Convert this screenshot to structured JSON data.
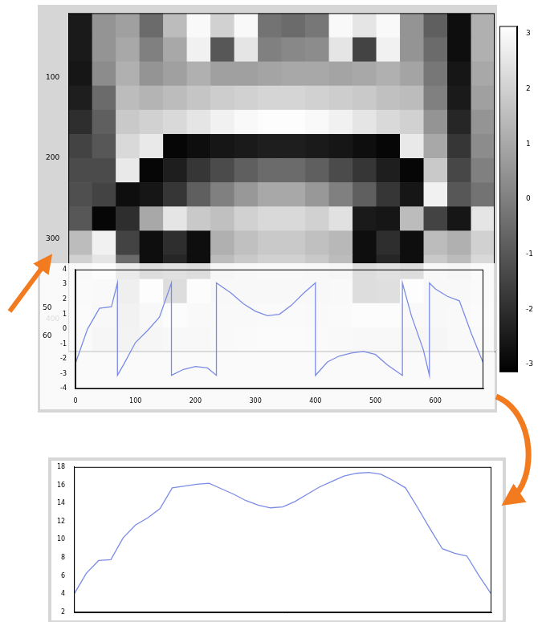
{
  "chart_data": [
    {
      "type": "heatmap",
      "xlim": [
        0,
        540
      ],
      "ylim": [
        20,
        440
      ],
      "yticks": [
        100,
        200,
        300,
        400
      ],
      "tick_labels": "y",
      "x_edges": [
        0,
        30,
        60,
        90,
        120,
        150,
        180,
        210,
        240,
        270,
        300,
        330,
        360,
        390,
        420,
        450,
        480,
        510,
        540
      ],
      "y_edges": [
        20,
        50,
        80,
        110,
        140,
        170,
        200,
        230,
        260,
        290,
        320,
        350,
        380,
        410,
        440
      ],
      "cells": [
        [
          -2.5,
          0.5,
          0.8,
          -0.5,
          1.5,
          3.0,
          2.0,
          3.0,
          -0.3,
          -0.5,
          -0.2,
          3.0,
          2.5,
          3.0,
          0.5,
          -0.8,
          -2.8,
          1.2
        ],
        [
          -2.5,
          0.5,
          1.0,
          0.0,
          1.0,
          2.8,
          -1.0,
          2.5,
          0.0,
          0.2,
          0.3,
          2.5,
          -1.5,
          2.8,
          0.5,
          -0.5,
          -2.8,
          1.2
        ],
        [
          -2.6,
          0.3,
          1.2,
          0.5,
          0.8,
          1.2,
          0.8,
          0.8,
          0.9,
          1.0,
          1.0,
          0.9,
          1.0,
          1.2,
          0.9,
          -0.2,
          -2.6,
          1.0
        ],
        [
          -2.4,
          -0.5,
          1.5,
          1.3,
          1.5,
          1.7,
          1.9,
          2.0,
          2.1,
          2.1,
          2.0,
          1.9,
          1.8,
          1.6,
          1.5,
          0.0,
          -2.5,
          0.8
        ],
        [
          -2.0,
          -0.8,
          1.8,
          2.0,
          2.2,
          2.5,
          2.8,
          3.0,
          3.1,
          3.1,
          3.0,
          2.8,
          2.5,
          2.2,
          2.0,
          0.5,
          -2.2,
          0.5
        ],
        [
          -1.5,
          -1.0,
          2.2,
          2.6,
          -3.0,
          -2.8,
          -2.6,
          -2.5,
          -2.4,
          -2.4,
          -2.5,
          -2.6,
          -2.8,
          -3.0,
          2.6,
          1.0,
          -1.8,
          0.3
        ],
        [
          -1.3,
          -1.3,
          2.6,
          -3.0,
          -2.4,
          -1.8,
          -1.3,
          -0.8,
          -0.5,
          -0.5,
          -0.8,
          -1.3,
          -1.8,
          -2.4,
          -3.0,
          1.8,
          -1.4,
          0.0
        ],
        [
          -1.2,
          -1.5,
          -2.8,
          -2.6,
          -1.8,
          -0.8,
          0.0,
          0.6,
          1.0,
          1.0,
          0.6,
          0.0,
          -0.8,
          -1.8,
          -2.6,
          2.8,
          -1.0,
          -0.3
        ],
        [
          -1.0,
          -3.0,
          -2.0,
          1.0,
          2.5,
          1.8,
          1.6,
          2.0,
          2.2,
          2.2,
          2.0,
          2.4,
          -2.5,
          -2.6,
          1.5,
          -1.5,
          -2.6,
          2.5
        ],
        [
          1.5,
          2.8,
          -1.5,
          -2.8,
          -2.0,
          -2.8,
          1.2,
          1.6,
          1.8,
          1.8,
          1.6,
          1.4,
          -2.8,
          -2.0,
          -2.8,
          1.5,
          1.2,
          2.0
        ],
        [
          2.0,
          2.5,
          -0.5,
          -2.8,
          -2.2,
          -2.8,
          1.5,
          1.8,
          2.0,
          2.0,
          1.8,
          1.5,
          -2.8,
          -2.2,
          -2.8,
          1.8,
          1.5,
          2.2
        ],
        [
          2.2,
          2.0,
          0.2,
          2.8,
          -2.8,
          2.5,
          1.8,
          1.8,
          1.9,
          1.9,
          1.8,
          2.0,
          -2.8,
          -2.6,
          2.8,
          1.8,
          1.8,
          2.2
        ],
        [
          2.3,
          1.8,
          0.8,
          1.8,
          2.5,
          2.0,
          2.0,
          2.1,
          2.2,
          2.2,
          2.1,
          2.2,
          2.5,
          2.6,
          2.0,
          1.8,
          2.0,
          2.3
        ],
        [
          2.2,
          1.6,
          1.0,
          1.5,
          1.8,
          1.8,
          2.0,
          2.2,
          2.4,
          2.4,
          2.2,
          2.0,
          1.9,
          1.8,
          1.5,
          1.6,
          2.0,
          2.2
        ]
      ],
      "colorbar_range": [
        -3.14,
        3.14
      ],
      "colorbar_ticks": [
        -3,
        -2,
        -1,
        0,
        1,
        2,
        3
      ]
    },
    {
      "type": "line",
      "color": "#7b8be6",
      "annotations": [
        "50",
        "60"
      ],
      "xlim": [
        0,
        680
      ],
      "xticks": [
        0,
        100,
        200,
        300,
        400,
        500,
        600
      ],
      "ylim": [
        -4,
        4
      ],
      "yticks": [
        -4,
        -3,
        -2,
        -1,
        0,
        1,
        2,
        3,
        4
      ],
      "x": [
        0,
        20,
        40,
        60,
        70,
        70,
        80,
        100,
        120,
        140,
        160,
        160,
        180,
        200,
        220,
        235,
        235,
        260,
        280,
        300,
        320,
        340,
        360,
        380,
        400,
        400,
        420,
        440,
        460,
        480,
        500,
        520,
        545,
        545,
        560,
        580,
        590,
        590,
        600,
        620,
        640,
        660,
        680
      ],
      "values": [
        -2.3,
        0.0,
        1.4,
        1.5,
        3.1,
        -3.1,
        -2.4,
        -0.9,
        -0.1,
        0.8,
        3.1,
        -3.1,
        -2.7,
        -2.5,
        -2.6,
        -3.1,
        3.1,
        2.4,
        1.7,
        1.2,
        0.9,
        1.0,
        1.6,
        2.4,
        3.1,
        -3.1,
        -2.2,
        -1.8,
        -1.6,
        -1.5,
        -1.7,
        -2.4,
        -3.1,
        3.1,
        0.9,
        -1.4,
        -3.1,
        3.1,
        2.7,
        2.2,
        1.9,
        -0.3,
        -2.3
      ]
    },
    {
      "type": "line",
      "color": "#7b8be6",
      "tick_labels": "y",
      "xlim": [
        0,
        680
      ],
      "ylim": [
        2,
        18
      ],
      "yticks": [
        2,
        4,
        6,
        8,
        10,
        12,
        14,
        16,
        18
      ],
      "x": [
        0,
        20,
        40,
        60,
        80,
        100,
        120,
        140,
        160,
        180,
        200,
        220,
        240,
        260,
        280,
        300,
        320,
        340,
        360,
        380,
        400,
        420,
        440,
        460,
        480,
        500,
        520,
        540,
        560,
        580,
        600,
        620,
        640,
        660,
        680
      ],
      "values": [
        4.0,
        6.3,
        7.7,
        7.8,
        10.2,
        11.6,
        12.4,
        13.4,
        15.7,
        15.9,
        16.1,
        16.2,
        15.6,
        15.0,
        14.3,
        13.8,
        13.5,
        13.6,
        14.2,
        15.0,
        15.8,
        16.4,
        17.0,
        17.3,
        17.4,
        17.2,
        16.5,
        15.7,
        13.5,
        11.2,
        9.0,
        8.5,
        8.2,
        6.0,
        4.0
      ]
    }
  ]
}
